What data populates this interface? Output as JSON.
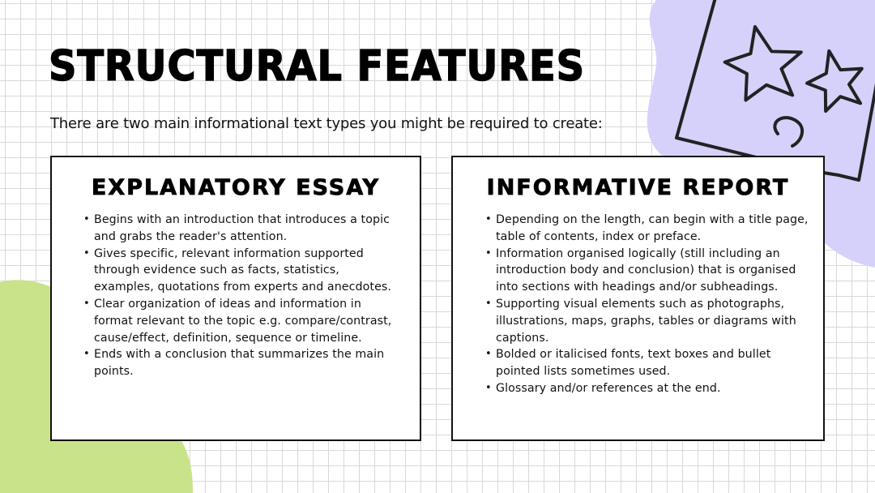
{
  "slide": {
    "title": "Structural Features",
    "subtitle": "There are two main informational text types you might be required to create:"
  },
  "cards": [
    {
      "heading": "Explanatory Essay",
      "items": [
        "Begins with an introduction that introduces a topic and grabs the reader's attention.",
        "Gives specific, relevant information supported through evidence such as facts, statistics, examples, quotations from experts and anecdotes.",
        "Clear organization of ideas and information in format relevant to the  topic e.g. compare/contrast, cause/effect, definition, sequence or timeline.",
        "Ends with a conclusion that summarizes the main points."
      ]
    },
    {
      "heading": "Informative Report",
      "items": [
        "Depending on the length, can begin with a title page, table of contents, index or preface.",
        "Information organised logically (still including an introduction body and conclusion) that is organised into sections with headings and/or subheadings.",
        "Supporting visual elements such as photographs, illustrations, maps, graphs, tables or diagrams with captions.",
        "Bolded or italicised fonts, text boxes and bullet pointed lists sometimes used.",
        "Glossary and/or references at the end."
      ]
    }
  ],
  "decorations": {
    "green_blob_color": "#c9e38a",
    "purple_blob_color": "#d6d1fb",
    "icon": "speech-bubble-stars-icon"
  }
}
